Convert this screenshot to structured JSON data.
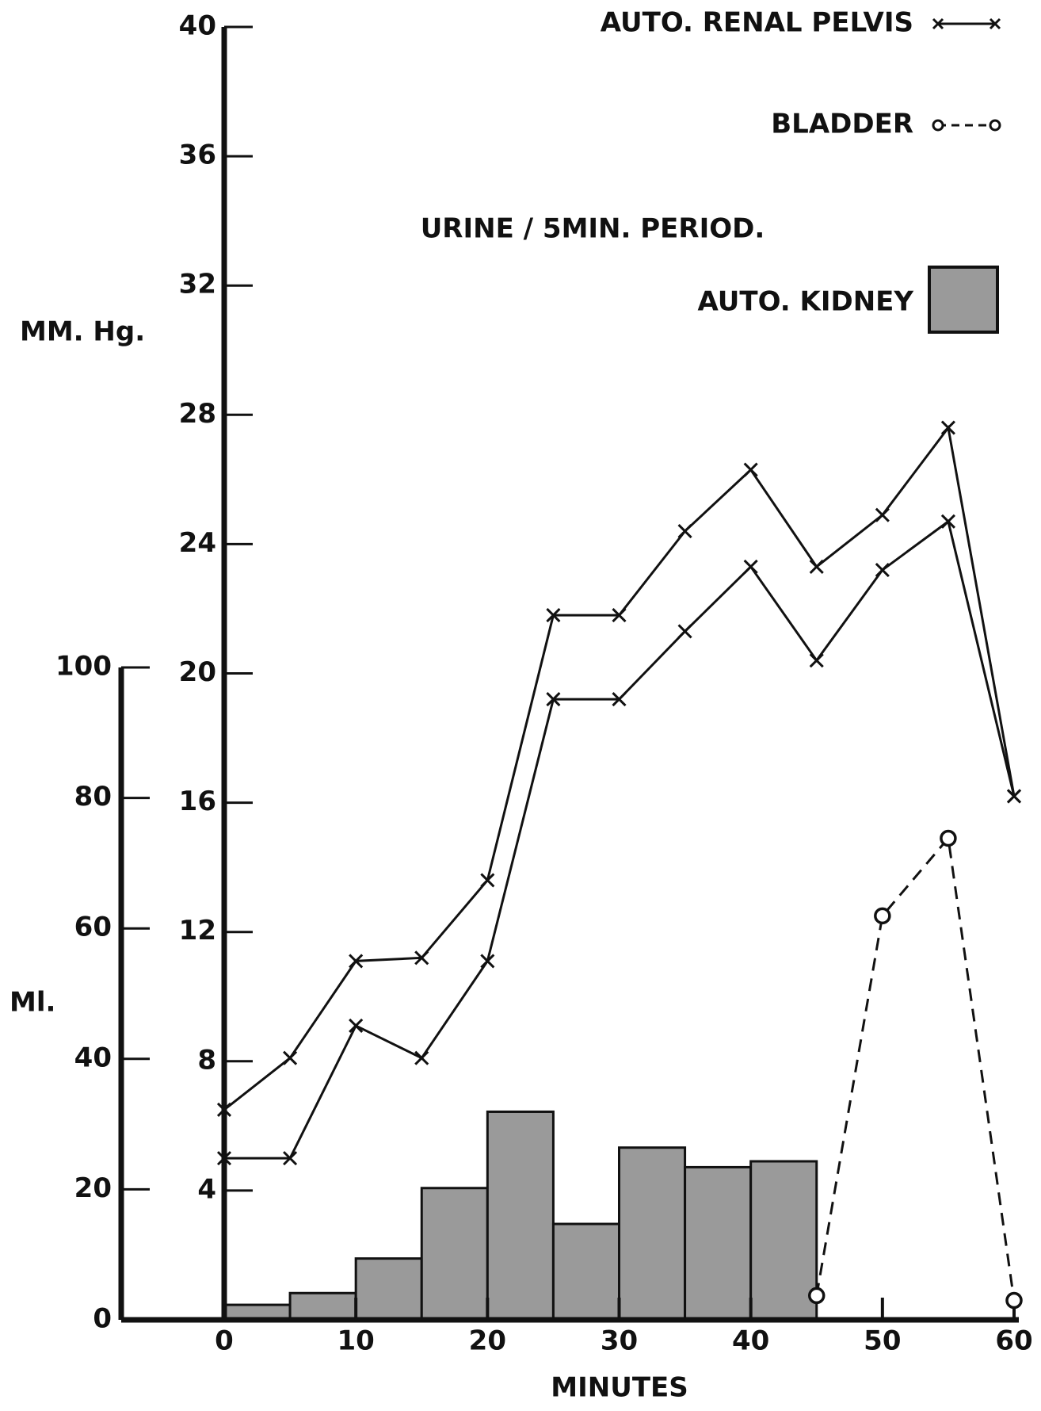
{
  "chart_data": [
    {
      "type": "histogram",
      "subtitle": "URINE / 5MIN. PERIOD.",
      "legend_label": "AUTO. KIDNEY",
      "ylabel": "Ml.",
      "bins": [
        0,
        5,
        10,
        15,
        20,
        25,
        30,
        35,
        40,
        45
      ],
      "values": [
        2.3,
        4.1,
        9.4,
        20.2,
        31.9,
        14.7,
        26.4,
        23.4,
        24.3
      ],
      "color": "#9a9a9a",
      "ylim": [
        0,
        100
      ],
      "yticks": [
        0,
        20,
        40,
        60,
        80,
        100
      ]
    },
    {
      "type": "line",
      "xlabel": "MINUTES",
      "ylabel": "MM. Hg.",
      "x": [
        0,
        5,
        10,
        15,
        20,
        25,
        30,
        35,
        40,
        45,
        50,
        55,
        60
      ],
      "xlim": [
        0,
        60
      ],
      "xticks": [
        0,
        10,
        20,
        30,
        40,
        50,
        60
      ],
      "ylim": [
        0,
        40
      ],
      "yticks": [
        4,
        8,
        12,
        16,
        20,
        24,
        28,
        32,
        36,
        40
      ],
      "series": [
        {
          "name": "AUTO. RENAL PELVIS",
          "color": "#111111",
          "marker": "x",
          "linestyle": "solid",
          "values": [
            6.5,
            8.1,
            11.1,
            11.2,
            13.6,
            21.8,
            21.8,
            24.4,
            26.3,
            23.3,
            24.9,
            27.6,
            16.2
          ]
        },
        {
          "color": "#111111",
          "marker": "x",
          "linestyle": "solid",
          "values": [
            5.0,
            5.0,
            9.1,
            8.1,
            11.1,
            19.2,
            19.2,
            21.3,
            23.3,
            20.4,
            23.2,
            24.7,
            16.2
          ]
        },
        {
          "name": "BLADDER",
          "color": "#111111",
          "marker": "o",
          "linestyle": "dashed",
          "values": [
            null,
            null,
            null,
            null,
            null,
            null,
            null,
            null,
            null,
            0.75,
            12.5,
            14.9,
            0.6
          ]
        }
      ]
    }
  ]
}
